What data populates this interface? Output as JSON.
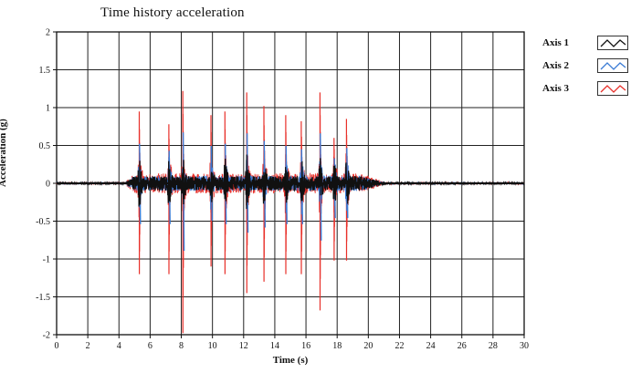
{
  "chart_data": {
    "type": "line",
    "title": "Time history acceleration",
    "xlabel": "Time (s)",
    "ylabel": "Acceleration (g)",
    "xlim": [
      0,
      30
    ],
    "ylim": [
      -2,
      2
    ],
    "xticks": [
      "0",
      "2",
      "4",
      "6",
      "8",
      "10",
      "12",
      "14",
      "16",
      "18",
      "20",
      "22",
      "24",
      "26",
      "28",
      "30"
    ],
    "yticks": [
      "2",
      "1.5",
      "1",
      "0.5",
      "0",
      "-0.5",
      "-1",
      "-1.5",
      "-2"
    ],
    "grid": true,
    "legend_position": "right",
    "series": [
      {
        "name": "Axis 1",
        "color": "#111111"
      },
      {
        "name": "Axis 2",
        "color": "#3a7bd5"
      },
      {
        "name": "Axis 3",
        "color": "#e8302a"
      }
    ],
    "peaks": [
      {
        "t": 5.3,
        "max": 0.95,
        "min": -1.2
      },
      {
        "t": 7.2,
        "max": 0.78,
        "min": -1.2
      },
      {
        "t": 8.1,
        "max": 1.22,
        "min": -1.98
      },
      {
        "t": 9.9,
        "max": 0.9,
        "min": -1.1
      },
      {
        "t": 10.8,
        "max": 0.95,
        "min": -1.2
      },
      {
        "t": 12.2,
        "max": 1.2,
        "min": -1.45
      },
      {
        "t": 13.3,
        "max": 1.02,
        "min": -1.3
      },
      {
        "t": 14.7,
        "max": 0.9,
        "min": -1.2
      },
      {
        "t": 15.7,
        "max": 0.82,
        "min": -1.2
      },
      {
        "t": 16.9,
        "max": 1.2,
        "min": -1.68
      },
      {
        "t": 17.8,
        "max": 0.6,
        "min": -1.02
      },
      {
        "t": 18.6,
        "max": 0.85,
        "min": -1.02
      }
    ],
    "active_range": [
      4.5,
      21
    ]
  }
}
